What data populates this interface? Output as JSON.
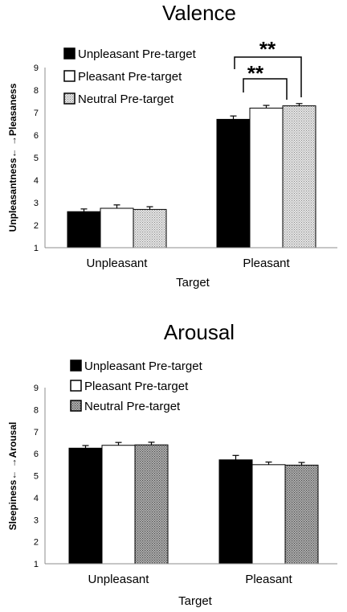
{
  "chart_data": [
    {
      "type": "bar",
      "title": "Valence",
      "xlabel": "Target",
      "ylabel": "Unpleasantness←    →Pleasaness",
      "categories": [
        "Unpleasant",
        "Pleasant"
      ],
      "ylim": [
        1,
        9
      ],
      "yticks": [
        "1",
        "2",
        "3",
        "4",
        "5",
        "6",
        "7",
        "8",
        "9"
      ],
      "legend_position": "top-left",
      "grid": false,
      "series": [
        {
          "name": "Unpleasant Pre-target",
          "values": [
            2.6,
            6.7
          ],
          "errors": [
            0.12,
            0.15
          ],
          "fill": "#000000"
        },
        {
          "name": "Pleasant Pre-target",
          "values": [
            2.75,
            7.2
          ],
          "errors": [
            0.15,
            0.12
          ],
          "fill": "#ffffff"
        },
        {
          "name": "Neutral Pre-target",
          "values": [
            2.7,
            7.3
          ],
          "errors": [
            0.12,
            0.1
          ],
          "fill": "#c8c8c8"
        }
      ],
      "annotations": [
        "**",
        "**"
      ]
    },
    {
      "type": "bar",
      "title": "Arousal",
      "xlabel": "Target",
      "ylabel": "Sleepiness←    →Arousal",
      "categories": [
        "Unpleasant",
        "Pleasant"
      ],
      "ylim": [
        1,
        9
      ],
      "yticks": [
        "1",
        "2",
        "3",
        "4",
        "5",
        "6",
        "7",
        "8",
        "9"
      ],
      "legend_position": "top-left",
      "grid": false,
      "series": [
        {
          "name": "Unpleasant Pre-target",
          "values": [
            6.25,
            5.72
          ],
          "errors": [
            0.12,
            0.2
          ],
          "fill": "#000000"
        },
        {
          "name": "Pleasant Pre-target",
          "values": [
            6.38,
            5.5
          ],
          "errors": [
            0.13,
            0.12
          ],
          "fill": "#ffffff"
        },
        {
          "name": "Neutral Pre-target",
          "values": [
            6.4,
            5.48
          ],
          "errors": [
            0.12,
            0.12
          ],
          "fill": "#8c8c8c"
        }
      ]
    }
  ]
}
